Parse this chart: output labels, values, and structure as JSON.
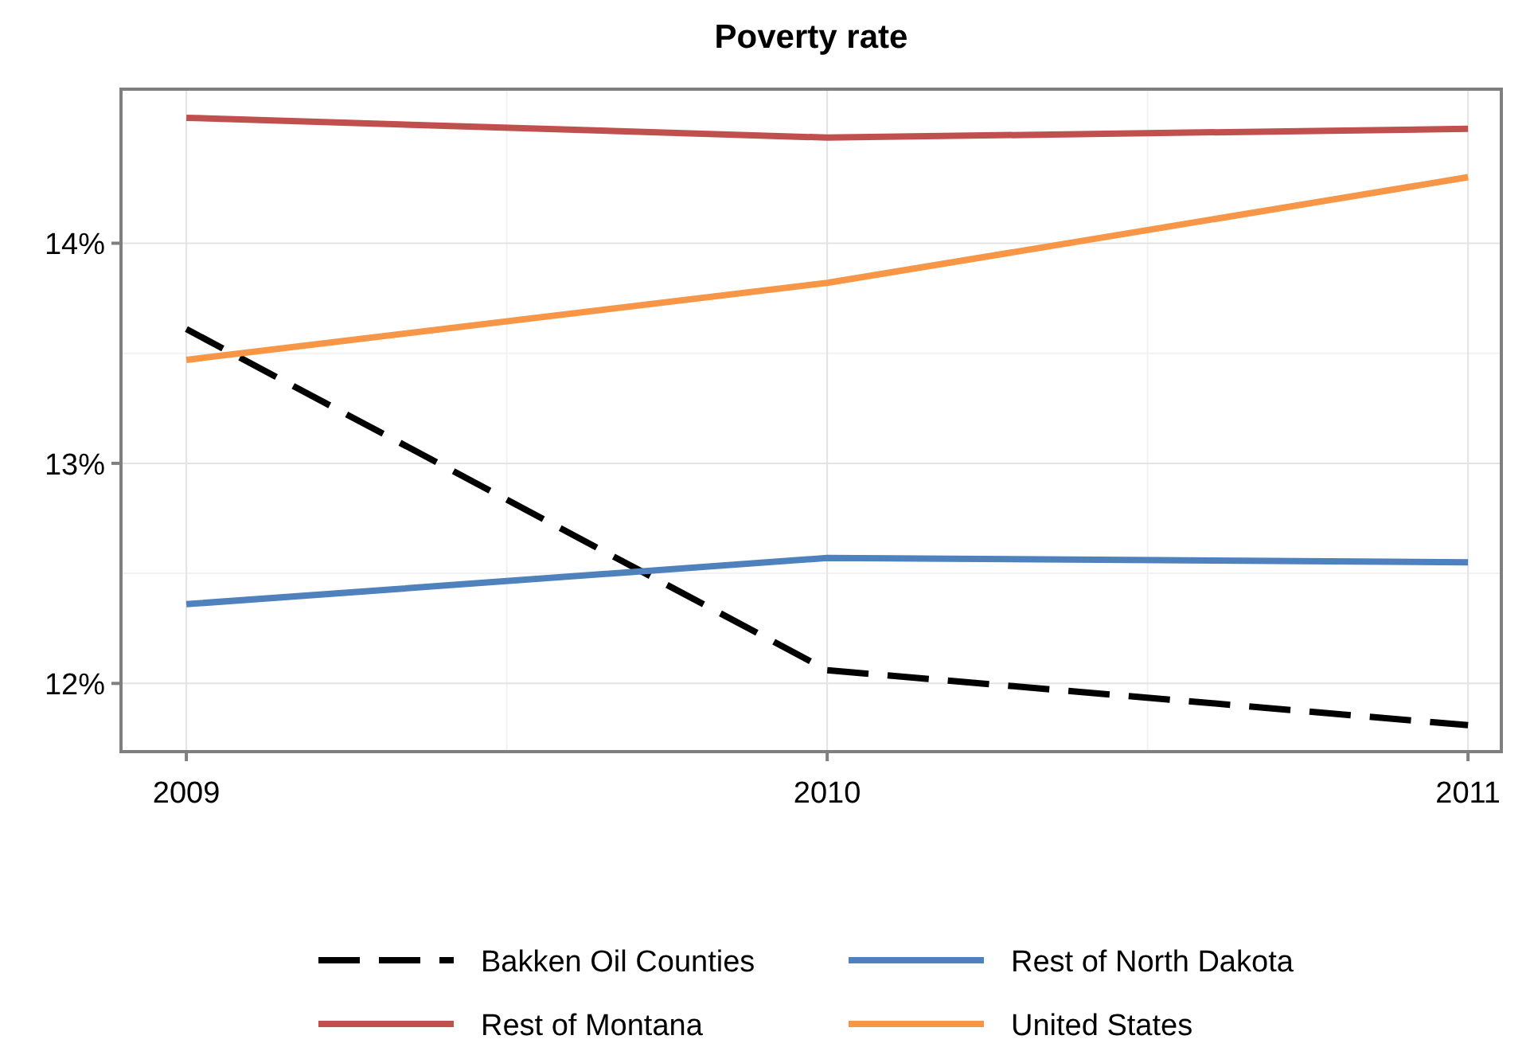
{
  "chart_data": {
    "type": "line",
    "title": "Poverty rate",
    "x": [
      2009,
      2010,
      2011
    ],
    "xlim": [
      2008.898,
      2011.052
    ],
    "xticks": [
      2009,
      2010,
      2011
    ],
    "ylim": [
      11.69,
      14.7
    ],
    "yticks": [
      {
        "value": 12,
        "label": "12%"
      },
      {
        "value": 13,
        "label": "13%"
      },
      {
        "value": 14,
        "label": "14%"
      }
    ],
    "grid": true,
    "legend": "bottom",
    "series": [
      {
        "name": "Bakken Oil Counties",
        "color": "#000000",
        "line_style": "dashed",
        "values": [
          13.61,
          12.06,
          11.81
        ]
      },
      {
        "name": "Rest of North Dakota",
        "color": "#4f81bd",
        "values": [
          12.36,
          12.57,
          12.55
        ]
      },
      {
        "name": "Rest of Montana",
        "color": "#c0504d",
        "values": [
          14.57,
          14.48,
          14.52
        ]
      },
      {
        "name": "United States",
        "color": "#f79646",
        "values": [
          13.47,
          13.82,
          14.3
        ]
      }
    ]
  }
}
